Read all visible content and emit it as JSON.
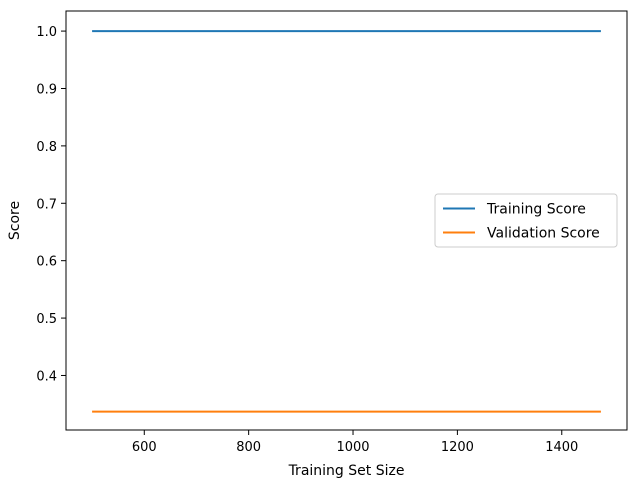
{
  "chart_data": {
    "type": "line",
    "xlabel": "Training Set Size",
    "ylabel": "Score",
    "xlim": [
      450,
      1525
    ],
    "ylim": [
      0.305,
      1.035
    ],
    "xticks": [
      600,
      800,
      1000,
      1200,
      1400
    ],
    "yticks": [
      0.4,
      0.5,
      0.6,
      0.7,
      0.8,
      0.9,
      1.0
    ],
    "xtick_labels": [
      "600",
      "800",
      "1000",
      "1200",
      "1400"
    ],
    "ytick_labels": [
      "0.4",
      "0.5",
      "0.6",
      "0.7",
      "0.8",
      "0.9",
      "1.0"
    ],
    "grid": false,
    "legend_position": "center-right",
    "series": [
      {
        "name": "Training Score",
        "color": "#1f77b4",
        "x": [
          500,
          1475
        ],
        "y": [
          1.0,
          1.0
        ]
      },
      {
        "name": "Validation Score",
        "color": "#ff7f0e",
        "x": [
          500,
          1475
        ],
        "y": [
          0.337,
          0.337
        ]
      }
    ]
  }
}
